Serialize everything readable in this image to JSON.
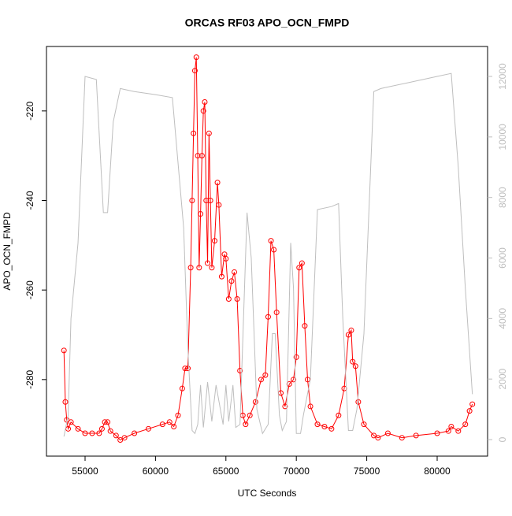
{
  "chart_data": {
    "type": "scatter",
    "title": "ORCAS RF03 APO_OCN_FMPD",
    "x_label": "UTC Seconds",
    "y_label": "APO_OCN_FMPD",
    "xlim": [
      52260,
      83580
    ],
    "xticks": [
      55000,
      60000,
      65000,
      70000,
      75000,
      80000
    ],
    "ylim": [
      -297.1,
      -205.6
    ],
    "yticks": [
      -220,
      -240,
      -260,
      -280
    ],
    "y2lim": [
      -547,
      12990
    ],
    "y2ticks": [
      0,
      2000,
      4000,
      6000,
      8000,
      10000,
      12000
    ],
    "series": [
      {
        "color": "#ff0000",
        "x": [
          53500,
          53600,
          53700,
          53800,
          54000,
          54500,
          55000,
          55500,
          56000,
          56200,
          56400,
          56600,
          56800,
          57200,
          57500,
          57800,
          58500,
          59500,
          60500,
          61000,
          61300,
          61600,
          61900,
          62100,
          62300,
          62500,
          62600,
          62700,
          62800,
          62900,
          63000,
          63100,
          63200,
          63300,
          63400,
          63500,
          63600,
          63700,
          63800,
          63900,
          64000,
          64200,
          64400,
          64500,
          64700,
          64900,
          65000,
          65200,
          65400,
          65600,
          65800,
          66000,
          66200,
          66400,
          66700,
          67100,
          67500,
          67800,
          68000,
          68200,
          68400,
          68600,
          68900,
          69200,
          69500,
          69800,
          70000,
          70200,
          70400,
          70600,
          70800,
          71000,
          71500,
          72000,
          72500,
          73000,
          73400,
          73700,
          73900,
          74000,
          74200,
          74400,
          74800,
          75500,
          75800,
          76500,
          77500,
          78500,
          80000,
          80800,
          81000,
          81500,
          82000,
          82300,
          82500
        ],
        "values": [
          -273.5,
          -285,
          -289,
          -291,
          -289.5,
          -291,
          -292,
          -292,
          -292,
          -291,
          -289.5,
          -289.5,
          -291.5,
          -292.5,
          -293.5,
          -293,
          -292,
          -291,
          -290,
          -289.5,
          -290.5,
          -288,
          -282,
          -277.5,
          -277.5,
          -255,
          -240,
          -225,
          -211,
          -208,
          -230,
          -255,
          -243,
          -230,
          -220,
          -218,
          -240,
          -254,
          -225,
          -240,
          -255,
          -249,
          -236,
          -241,
          -257,
          -252,
          -253,
          -262,
          -258,
          -256,
          -262,
          -278,
          -288,
          -290,
          -288,
          -285,
          -280,
          -279,
          -266,
          -249,
          -251,
          -265,
          -283,
          -286,
          -281,
          -280,
          -275,
          -255,
          -254,
          -268,
          -280,
          -286,
          -290,
          -290.5,
          -291,
          -288,
          -282,
          -270,
          -269,
          -276,
          -277,
          -285,
          -290,
          -292.5,
          -293,
          -292,
          -293,
          -292.5,
          -292,
          -291.5,
          -290.5,
          -291.5,
          -290,
          -287,
          -285.5
        ]
      },
      {
        "color": "#bebebe",
        "axis": "y2",
        "x": [
          53500,
          53800,
          54000,
          54500,
          55000,
          55800,
          56300,
          56600,
          57000,
          57500,
          58500,
          60000,
          61200,
          62000,
          62300,
          62600,
          62800,
          63000,
          63200,
          63400,
          63700,
          64000,
          64300,
          64800,
          65000,
          65200,
          65500,
          65700,
          66000,
          66500,
          66800,
          67200,
          67600,
          68000,
          68300,
          68500,
          68800,
          69000,
          69300,
          69600,
          69800,
          70000,
          70300,
          70500,
          71000,
          71500,
          72500,
          73000,
          73300,
          73700,
          74000,
          74300,
          74800,
          75500,
          76000,
          78000,
          80000,
          81000,
          81500,
          82000,
          82500
        ],
        "values": [
          100,
          800,
          4000,
          6500,
          12000,
          11900,
          7500,
          7500,
          10500,
          11600,
          11500,
          11400,
          11300,
          7000,
          3000,
          300,
          200,
          500,
          1800,
          400,
          1900,
          600,
          1800,
          500,
          1800,
          600,
          1800,
          400,
          500,
          7500,
          6000,
          1000,
          200,
          500,
          3500,
          3500,
          800,
          300,
          600,
          6500,
          5000,
          200,
          200,
          800,
          2000,
          7600,
          7700,
          7800,
          4000,
          300,
          300,
          1000,
          3500,
          11500,
          11600,
          11800,
          12000,
          12100,
          9000,
          5000,
          1500
        ]
      }
    ]
  }
}
